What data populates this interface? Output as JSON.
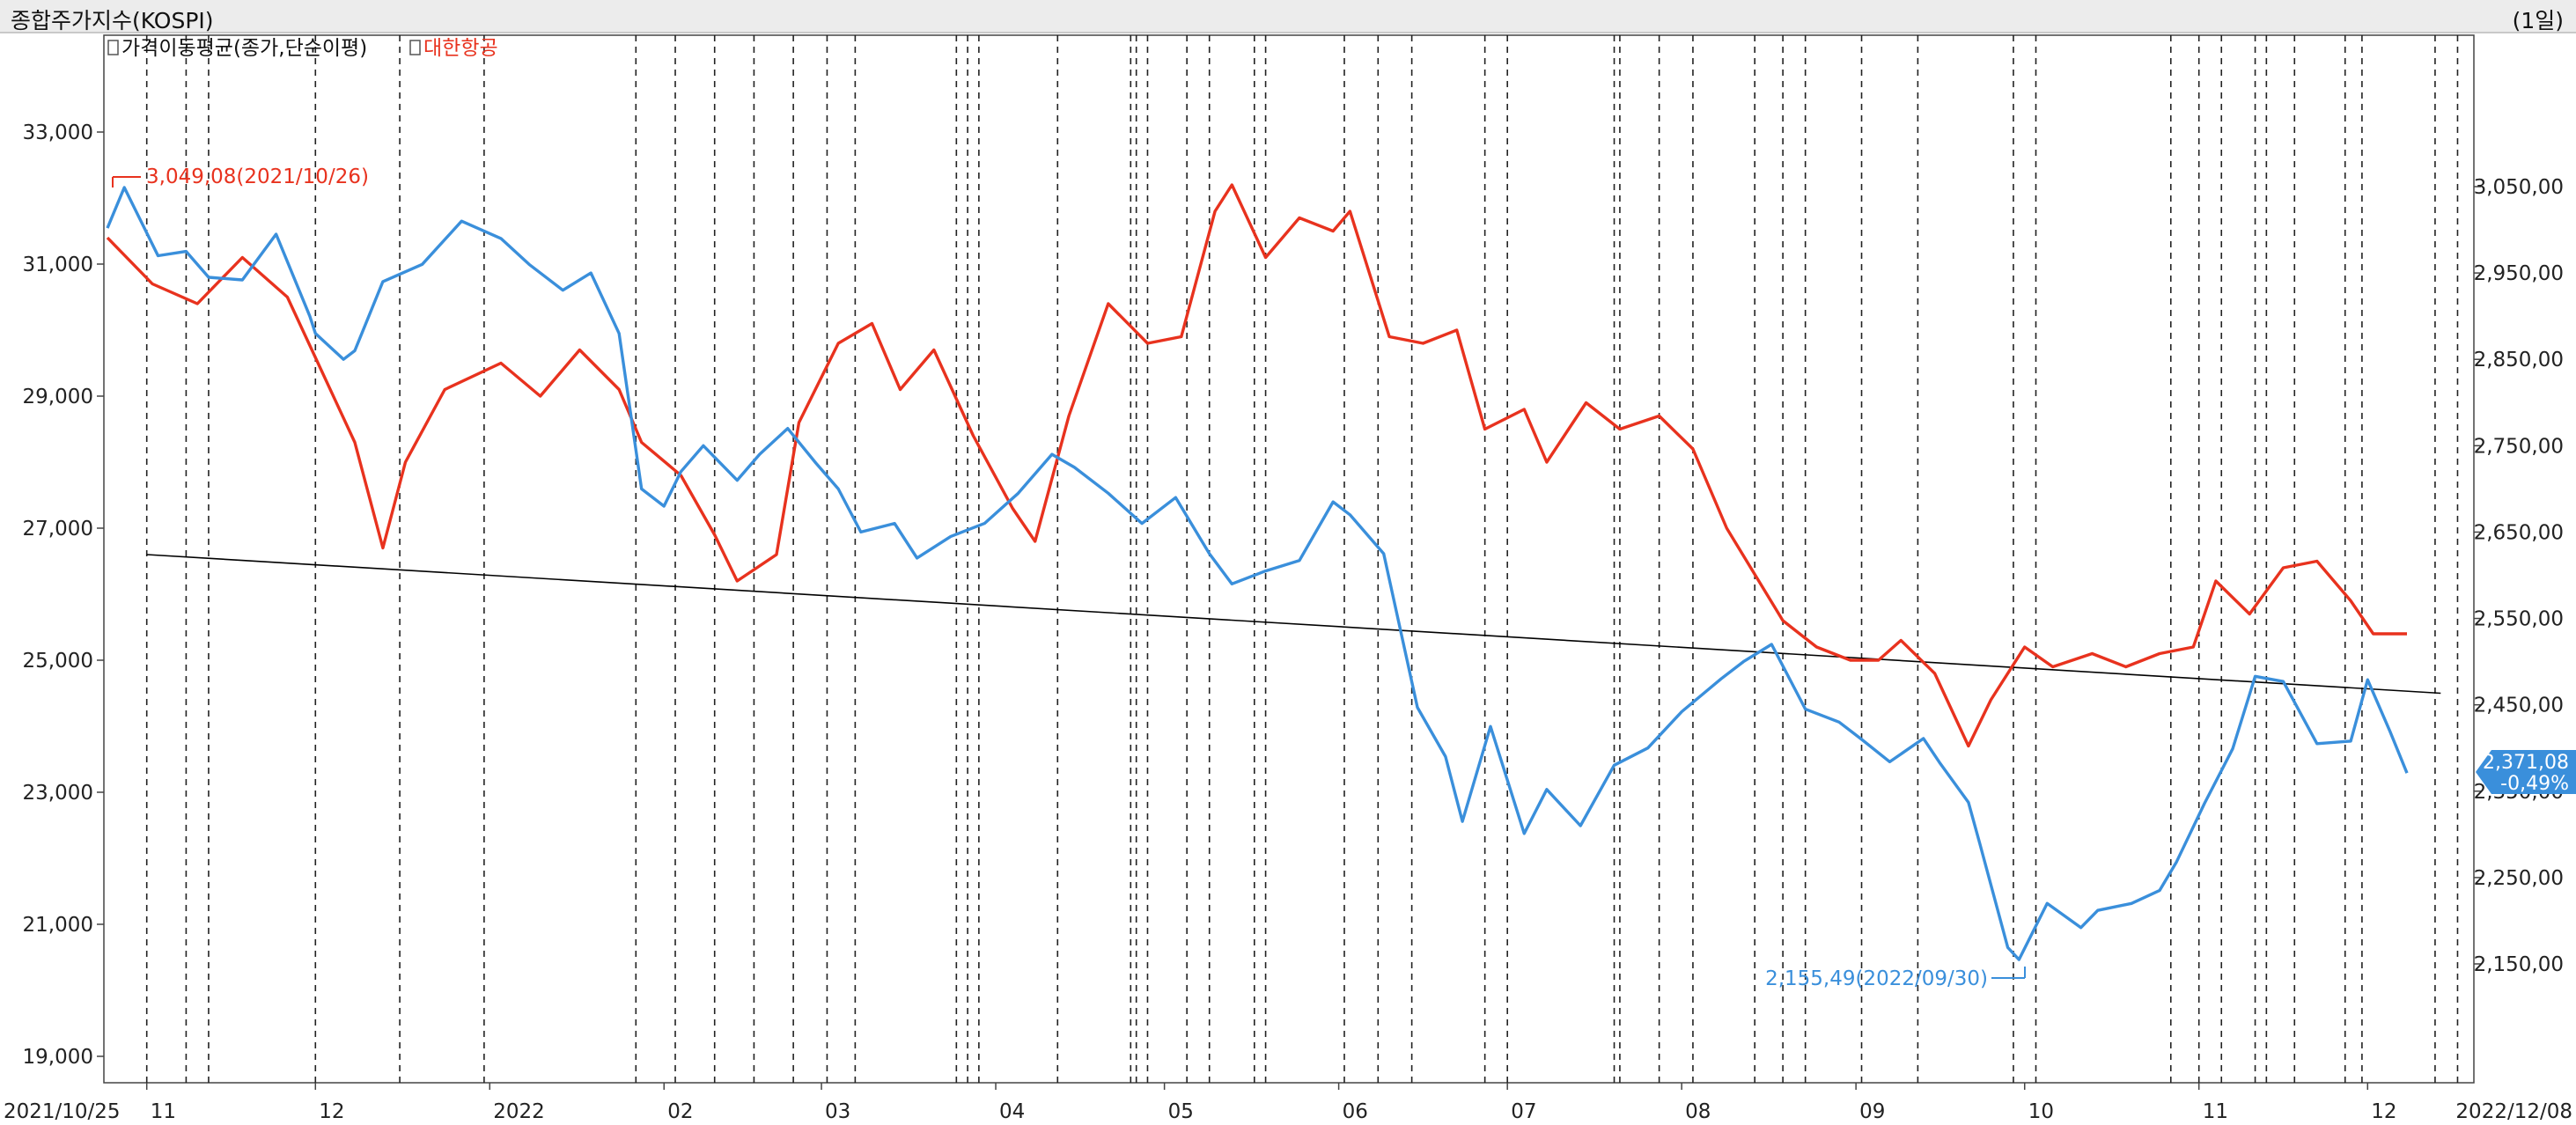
{
  "window": {
    "title": "종합주가지수(KOSPI)",
    "period": "(1일)"
  },
  "chart_data": {
    "type": "line",
    "legend": [
      {
        "name": "가격이동평균(종가,단순이평)",
        "color": "#8a8a8a"
      },
      {
        "name": "대한항공",
        "color": "#e8321e"
      }
    ],
    "date_range": {
      "start": "2021/10/25",
      "end": "2022/12/08"
    },
    "x_month_labels": [
      "11",
      "12",
      "2022",
      "02",
      "03",
      "04",
      "05",
      "06",
      "07",
      "08",
      "09",
      "10",
      "11",
      "12"
    ],
    "left_axis": {
      "ticks": [
        19000,
        21000,
        23000,
        25000,
        27000,
        29000,
        31000,
        33000
      ],
      "labels": [
        "19,000",
        "21,000",
        "23,000",
        "25,000",
        "27,000",
        "29,000",
        "31,000",
        "33,000"
      ],
      "ylim": [
        18500,
        34500
      ]
    },
    "right_axis": {
      "ticks": [
        2150,
        2250,
        2350,
        2450,
        2550,
        2650,
        2750,
        2850,
        2950,
        3050
      ],
      "labels": [
        "2,150,00",
        "2,250,00",
        "2,350,00",
        "2,450,00",
        "2,550,00",
        "2,650,00",
        "2,750,00",
        "2,850,00",
        "2,950,00",
        "3,050,00"
      ],
      "ylim": [
        2080,
        3150
      ]
    },
    "series": [
      {
        "name": "대한항공",
        "color": "#e8321e",
        "axis": "left",
        "points": [
          [
            "2021-10-25",
            31400
          ],
          [
            "2021-11-02",
            30700
          ],
          [
            "2021-11-10",
            30400
          ],
          [
            "2021-11-18",
            31100
          ],
          [
            "2021-11-26",
            30500
          ],
          [
            "2021-12-02",
            29400
          ],
          [
            "2021-12-08",
            28300
          ],
          [
            "2021-12-13",
            26700
          ],
          [
            "2021-12-17",
            28000
          ],
          [
            "2021-12-24",
            29100
          ],
          [
            "2022-01-03",
            29500
          ],
          [
            "2022-01-10",
            29000
          ],
          [
            "2022-01-17",
            29700
          ],
          [
            "2022-01-24",
            29100
          ],
          [
            "2022-01-28",
            28300
          ],
          [
            "2022-02-04",
            27800
          ],
          [
            "2022-02-10",
            26900
          ],
          [
            "2022-02-14",
            26200
          ],
          [
            "2022-02-21",
            26600
          ],
          [
            "2022-02-25",
            28600
          ],
          [
            "2022-03-04",
            29800
          ],
          [
            "2022-03-10",
            30100
          ],
          [
            "2022-03-15",
            29100
          ],
          [
            "2022-03-21",
            29700
          ],
          [
            "2022-03-28",
            28400
          ],
          [
            "2022-04-04",
            27300
          ],
          [
            "2022-04-08",
            26800
          ],
          [
            "2022-04-14",
            28700
          ],
          [
            "2022-04-21",
            30400
          ],
          [
            "2022-04-28",
            29800
          ],
          [
            "2022-05-04",
            29900
          ],
          [
            "2022-05-10",
            31800
          ],
          [
            "2022-05-13",
            32200
          ],
          [
            "2022-05-19",
            31100
          ],
          [
            "2022-05-25",
            31700
          ],
          [
            "2022-05-31",
            31500
          ],
          [
            "2022-06-03",
            31800
          ],
          [
            "2022-06-10",
            29900
          ],
          [
            "2022-06-16",
            29800
          ],
          [
            "2022-06-22",
            30000
          ],
          [
            "2022-06-27",
            28500
          ],
          [
            "2022-07-04",
            28800
          ],
          [
            "2022-07-08",
            28000
          ],
          [
            "2022-07-15",
            28900
          ],
          [
            "2022-07-21",
            28500
          ],
          [
            "2022-07-28",
            28700
          ],
          [
            "2022-08-03",
            28200
          ],
          [
            "2022-08-09",
            27000
          ],
          [
            "2022-08-14",
            26300
          ],
          [
            "2022-08-19",
            25600
          ],
          [
            "2022-08-25",
            25200
          ],
          [
            "2022-08-31",
            25000
          ],
          [
            "2022-09-05",
            25000
          ],
          [
            "2022-09-09",
            25300
          ],
          [
            "2022-09-15",
            24800
          ],
          [
            "2022-09-21",
            23700
          ],
          [
            "2022-09-25",
            24400
          ],
          [
            "2022-10-01",
            25200
          ],
          [
            "2022-10-06",
            24900
          ],
          [
            "2022-10-13",
            25100
          ],
          [
            "2022-10-19",
            24900
          ],
          [
            "2022-10-25",
            25100
          ],
          [
            "2022-10-31",
            25200
          ],
          [
            "2022-11-04",
            26200
          ],
          [
            "2022-11-10",
            25700
          ],
          [
            "2022-11-16",
            26400
          ],
          [
            "2022-11-22",
            26500
          ],
          [
            "2022-11-28",
            25900
          ],
          [
            "2022-12-02",
            25400
          ],
          [
            "2022-12-08",
            25400
          ]
        ]
      },
      {
        "name": "종합주가지수(KOSPI)",
        "color": "#3a8fdb",
        "axis": "right",
        "points": [
          [
            "2021-10-25",
            3002
          ],
          [
            "2021-10-28",
            3049
          ],
          [
            "2021-11-03",
            2970
          ],
          [
            "2021-11-08",
            2975
          ],
          [
            "2021-11-12",
            2945
          ],
          [
            "2021-11-18",
            2942
          ],
          [
            "2021-11-24",
            2995
          ],
          [
            "2021-11-30",
            2900
          ],
          [
            "2021-12-01",
            2880
          ],
          [
            "2021-12-06",
            2850
          ],
          [
            "2021-12-08",
            2860
          ],
          [
            "2021-12-13",
            2940
          ],
          [
            "2021-12-20",
            2960
          ],
          [
            "2021-12-27",
            3010
          ],
          [
            "2022-01-03",
            2990
          ],
          [
            "2022-01-08",
            2960
          ],
          [
            "2022-01-14",
            2930
          ],
          [
            "2022-01-19",
            2950
          ],
          [
            "2022-01-24",
            2880
          ],
          [
            "2022-01-28",
            2700
          ],
          [
            "2022-02-01",
            2680
          ],
          [
            "2022-02-04",
            2720
          ],
          [
            "2022-02-08",
            2750
          ],
          [
            "2022-02-14",
            2710
          ],
          [
            "2022-02-18",
            2740
          ],
          [
            "2022-02-23",
            2770
          ],
          [
            "2022-02-28",
            2730
          ],
          [
            "2022-03-04",
            2700
          ],
          [
            "2022-03-08",
            2650
          ],
          [
            "2022-03-14",
            2660
          ],
          [
            "2022-03-18",
            2620
          ],
          [
            "2022-03-24",
            2645
          ],
          [
            "2022-03-30",
            2660
          ],
          [
            "2022-04-05",
            2695
          ],
          [
            "2022-04-11",
            2740
          ],
          [
            "2022-04-15",
            2725
          ],
          [
            "2022-04-21",
            2695
          ],
          [
            "2022-04-27",
            2660
          ],
          [
            "2022-05-03",
            2690
          ],
          [
            "2022-05-09",
            2625
          ],
          [
            "2022-05-13",
            2590
          ],
          [
            "2022-05-19",
            2605
          ],
          [
            "2022-05-25",
            2617
          ],
          [
            "2022-05-31",
            2685
          ],
          [
            "2022-06-03",
            2670
          ],
          [
            "2022-06-09",
            2625
          ],
          [
            "2022-06-15",
            2447
          ],
          [
            "2022-06-20",
            2390
          ],
          [
            "2022-06-23",
            2315
          ],
          [
            "2022-06-28",
            2425
          ],
          [
            "2022-07-04",
            2301
          ],
          [
            "2022-07-08",
            2352
          ],
          [
            "2022-07-14",
            2310
          ],
          [
            "2022-07-20",
            2380
          ],
          [
            "2022-07-26",
            2400
          ],
          [
            "2022-08-01",
            2442
          ],
          [
            "2022-08-08",
            2480
          ],
          [
            "2022-08-12",
            2500
          ],
          [
            "2022-08-17",
            2520
          ],
          [
            "2022-08-23",
            2445
          ],
          [
            "2022-08-29",
            2430
          ],
          [
            "2022-09-02",
            2410
          ],
          [
            "2022-09-07",
            2384
          ],
          [
            "2022-09-13",
            2411
          ],
          [
            "2022-09-16",
            2382
          ],
          [
            "2022-09-21",
            2337
          ],
          [
            "2022-09-23",
            2290
          ],
          [
            "2022-09-28",
            2169
          ],
          [
            "2022-09-30",
            2155
          ],
          [
            "2022-10-05",
            2220
          ],
          [
            "2022-10-11",
            2192
          ],
          [
            "2022-10-14",
            2212
          ],
          [
            "2022-10-20",
            2220
          ],
          [
            "2022-10-25",
            2235
          ],
          [
            "2022-10-28",
            2268
          ],
          [
            "2022-11-02",
            2336
          ],
          [
            "2022-11-07",
            2399
          ],
          [
            "2022-11-11",
            2483
          ],
          [
            "2022-11-16",
            2477
          ],
          [
            "2022-11-22",
            2405
          ],
          [
            "2022-11-28",
            2408
          ],
          [
            "2022-12-01",
            2479
          ],
          [
            "2022-12-05",
            2419
          ],
          [
            "2022-12-08",
            2371
          ]
        ]
      }
    ],
    "annotations": [
      {
        "text": "3,049,08(2021/10/26)",
        "series": "대한항공",
        "color": "#e8321e"
      },
      {
        "text": "2,155,49(2022/09/30)",
        "series": "종합주가지수(KOSPI)",
        "color": "#3a8fdb"
      }
    ],
    "last_value": {
      "value": "2,371,08",
      "change": "-0,49%",
      "color": "#3a8fdb"
    },
    "trendline": {
      "color": "#000000",
      "points": [
        [
          "2021-11-01",
          26600
        ],
        [
          "2022-12-14",
          24500
        ]
      ]
    },
    "vlines": [
      "2021-11-01",
      "2021-11-08",
      "2021-11-12",
      "2021-12-01",
      "2021-12-16",
      "2021-12-31",
      "2022-01-27",
      "2022-02-03",
      "2022-02-10",
      "2022-02-17",
      "2022-02-24",
      "2022-03-02",
      "2022-03-07",
      "2022-03-25",
      "2022-03-27",
      "2022-03-29",
      "2022-04-12",
      "2022-04-25",
      "2022-04-26",
      "2022-04-28",
      "2022-05-05",
      "2022-05-09",
      "2022-05-17",
      "2022-05-19",
      "2022-06-02",
      "2022-06-08",
      "2022-06-14",
      "2022-06-27",
      "2022-07-01",
      "2022-07-20",
      "2022-07-21",
      "2022-07-28",
      "2022-08-03",
      "2022-08-14",
      "2022-08-19",
      "2022-08-23",
      "2022-09-02",
      "2022-09-12",
      "2022-09-29",
      "2022-10-03",
      "2022-10-27",
      "2022-11-01",
      "2022-11-05",
      "2022-11-11",
      "2022-11-13",
      "2022-11-18",
      "2022-11-27",
      "2022-11-30",
      "2022-12-13",
      "2022-12-17",
      "2022-12-20",
      "2022-12-25",
      "2023-01-02",
      "2023-01-05",
      "2023-01-12",
      "2023-01-19",
      "2023-02-05",
      "2023-02-08",
      "2023-02-14"
    ]
  }
}
